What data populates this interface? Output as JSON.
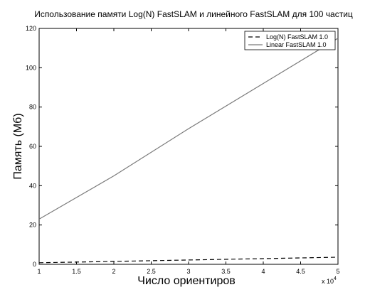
{
  "chart_data": {
    "type": "line",
    "title": "Использование памяти Log(N) FastSLAM и линейного FastSLAM для 100 частиц",
    "xlabel": "Число ориентиров",
    "ylabel": "Память (Мб)",
    "x_multiplier_label": "x 10",
    "x_multiplier_exponent": "4",
    "xlim": [
      1,
      5
    ],
    "ylim": [
      0,
      120
    ],
    "xticks": [
      1,
      1.5,
      2,
      2.5,
      3,
      3.5,
      4,
      4.5,
      5
    ],
    "xtick_labels": [
      "1",
      "1.5",
      "2",
      "2.5",
      "3",
      "3.5",
      "4",
      "4.5",
      "5"
    ],
    "yticks": [
      0,
      20,
      40,
      60,
      80,
      100,
      120
    ],
    "ytick_labels": [
      "0",
      "20",
      "40",
      "60",
      "80",
      "100",
      "120"
    ],
    "grid": false,
    "legend_position": "top-right",
    "series": [
      {
        "name": "Log(N) FastSLAM 1.0",
        "style": "dashed",
        "color": "#000000",
        "x": [
          1,
          2,
          3,
          4,
          5
        ],
        "values": [
          0.8,
          1.5,
          2.2,
          2.9,
          3.6
        ]
      },
      {
        "name": "Linear FastSLAM 1.0",
        "style": "solid",
        "color": "#7a7a7a",
        "x": [
          1,
          2,
          3,
          4,
          5
        ],
        "values": [
          23,
          45,
          69,
          92,
          115
        ]
      }
    ]
  }
}
